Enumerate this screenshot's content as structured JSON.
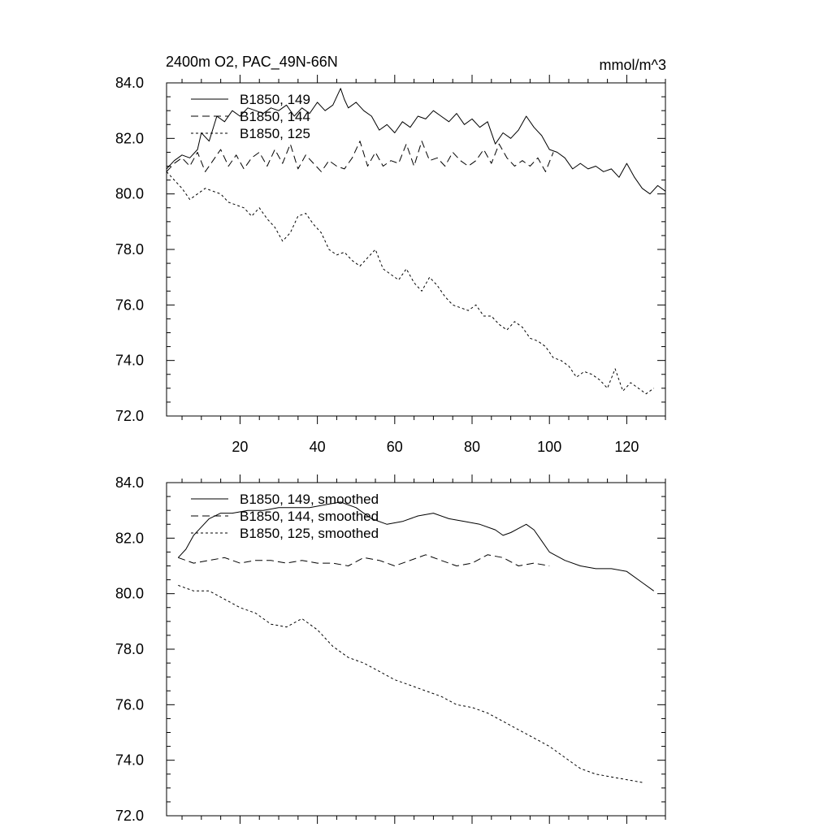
{
  "chart_data": [
    {
      "type": "line",
      "title": "2400m O2, PAC_49N-66N",
      "units": "mmol/m^3",
      "xlim": [
        1,
        130
      ],
      "ylim": [
        72.0,
        84.0
      ],
      "x_ticks": [
        20,
        40,
        60,
        80,
        100,
        120
      ],
      "x_tick_labels": [
        "20",
        "40",
        "60",
        "80",
        "100",
        "120"
      ],
      "y_ticks": [
        72.0,
        74.0,
        76.0,
        78.0,
        80.0,
        82.0,
        84.0
      ],
      "y_tick_labels": [
        "72.0",
        "74.0",
        "76.0",
        "78.0",
        "80.0",
        "82.0",
        "84.0"
      ],
      "legend_position": "top-left",
      "series": [
        {
          "name": "B1850, 149",
          "dash": "solid",
          "x": [
            1,
            3,
            5,
            7,
            9,
            10,
            12,
            14,
            16,
            18,
            20,
            22,
            24,
            26,
            28,
            30,
            32,
            34,
            36,
            38,
            40,
            42,
            44,
            46,
            47,
            48,
            50,
            52,
            54,
            56,
            58,
            60,
            62,
            64,
            66,
            68,
            70,
            72,
            74,
            76,
            78,
            80,
            82,
            84,
            86,
            88,
            90,
            92,
            94,
            96,
            98,
            100,
            102,
            104,
            106,
            108,
            110,
            112,
            114,
            116,
            118,
            120,
            122,
            124,
            126,
            128,
            130
          ],
          "values": [
            80.9,
            81.2,
            81.4,
            81.3,
            81.6,
            82.2,
            81.9,
            82.8,
            82.6,
            83.0,
            82.8,
            83.1,
            83.0,
            82.9,
            83.1,
            83.0,
            83.2,
            82.8,
            83.1,
            82.9,
            83.3,
            83.0,
            83.2,
            83.8,
            83.4,
            83.1,
            83.3,
            83.0,
            82.8,
            82.3,
            82.5,
            82.2,
            82.6,
            82.4,
            82.8,
            82.7,
            83.0,
            82.8,
            82.6,
            82.9,
            82.5,
            82.7,
            82.4,
            82.6,
            81.8,
            82.2,
            82.0,
            82.3,
            82.8,
            82.4,
            82.1,
            81.6,
            81.5,
            81.3,
            80.9,
            81.1,
            80.9,
            81.0,
            80.8,
            80.9,
            80.6,
            81.1,
            80.6,
            80.2,
            80.0,
            80.3,
            80.1
          ]
        },
        {
          "name": "B1850, 144",
          "dash": "long-dash",
          "x": [
            1,
            3,
            5,
            7,
            9,
            11,
            13,
            15,
            17,
            19,
            21,
            23,
            25,
            27,
            29,
            31,
            33,
            35,
            37,
            39,
            41,
            43,
            45,
            47,
            49,
            51,
            53,
            55,
            57,
            59,
            61,
            63,
            65,
            67,
            69,
            71,
            73,
            75,
            77,
            79,
            81,
            83,
            85,
            87,
            89,
            91,
            93,
            95,
            97,
            99,
            101
          ],
          "values": [
            80.8,
            81.1,
            81.3,
            81.0,
            81.5,
            80.8,
            81.2,
            81.6,
            81.0,
            81.4,
            80.9,
            81.3,
            81.5,
            81.0,
            81.6,
            81.1,
            81.8,
            80.9,
            81.4,
            81.1,
            80.8,
            81.2,
            81.0,
            80.9,
            81.3,
            81.9,
            81.0,
            81.5,
            81.0,
            81.2,
            81.1,
            81.8,
            81.0,
            81.9,
            81.2,
            81.3,
            81.0,
            81.5,
            81.2,
            81.0,
            81.2,
            81.6,
            81.1,
            81.8,
            81.3,
            81.0,
            81.2,
            81.0,
            81.3,
            80.8,
            81.5
          ]
        },
        {
          "name": "B1850, 125",
          "dash": "short-dash",
          "x": [
            1,
            3,
            5,
            7,
            9,
            11,
            13,
            15,
            17,
            19,
            21,
            23,
            25,
            27,
            29,
            31,
            33,
            35,
            37,
            39,
            41,
            43,
            45,
            47,
            49,
            51,
            53,
            55,
            57,
            59,
            61,
            63,
            65,
            67,
            69,
            71,
            73,
            75,
            77,
            79,
            81,
            83,
            85,
            87,
            89,
            91,
            93,
            95,
            97,
            99,
            101,
            103,
            105,
            107,
            109,
            111,
            113,
            115,
            117,
            119,
            121,
            123,
            125,
            127
          ],
          "values": [
            80.8,
            80.5,
            80.2,
            79.8,
            80.0,
            80.2,
            80.1,
            80.0,
            79.7,
            79.6,
            79.5,
            79.2,
            79.5,
            79.1,
            78.8,
            78.3,
            78.6,
            79.2,
            79.3,
            78.9,
            78.6,
            78.0,
            77.8,
            77.9,
            77.6,
            77.4,
            77.7,
            78.0,
            77.3,
            77.1,
            76.9,
            77.3,
            76.8,
            76.5,
            77.0,
            76.7,
            76.3,
            76.0,
            75.9,
            75.8,
            76.0,
            75.6,
            75.6,
            75.3,
            75.1,
            75.4,
            75.2,
            74.8,
            74.7,
            74.5,
            74.1,
            74.0,
            73.8,
            73.4,
            73.6,
            73.5,
            73.3,
            73.0,
            73.7,
            72.9,
            73.2,
            73.0,
            72.8,
            73.0
          ]
        }
      ]
    },
    {
      "type": "line",
      "title": "",
      "units": "",
      "xlim": [
        1,
        130
      ],
      "ylim": [
        72.0,
        84.0
      ],
      "y_ticks": [
        72.0,
        74.0,
        76.0,
        78.0,
        80.0,
        82.0,
        84.0
      ],
      "y_tick_labels": [
        "72.0",
        "74.0",
        "76.0",
        "78.0",
        "80.0",
        "82.0",
        "84.0"
      ],
      "legend_position": "top-left",
      "series": [
        {
          "name": "B1850, 149, smoothed",
          "dash": "solid",
          "x": [
            4,
            6,
            8,
            10,
            12,
            15,
            18,
            22,
            26,
            30,
            34,
            38,
            42,
            46,
            50,
            54,
            58,
            62,
            66,
            70,
            74,
            78,
            82,
            86,
            88,
            90,
            94,
            96,
            98,
            100,
            104,
            108,
            112,
            116,
            120,
            124,
            127
          ],
          "values": [
            81.3,
            81.6,
            82.1,
            82.4,
            82.7,
            82.9,
            82.9,
            83.0,
            83.0,
            83.1,
            83.1,
            83.1,
            83.2,
            83.3,
            83.1,
            82.7,
            82.5,
            82.6,
            82.8,
            82.9,
            82.7,
            82.6,
            82.5,
            82.3,
            82.1,
            82.2,
            82.5,
            82.3,
            81.9,
            81.5,
            81.2,
            81.0,
            80.9,
            80.9,
            80.8,
            80.4,
            80.1
          ]
        },
        {
          "name": "B1850, 144, smoothed",
          "dash": "long-dash",
          "x": [
            4,
            8,
            12,
            16,
            20,
            24,
            28,
            32,
            36,
            40,
            44,
            48,
            52,
            56,
            60,
            64,
            68,
            72,
            76,
            80,
            84,
            88,
            92,
            96,
            100
          ],
          "values": [
            81.3,
            81.1,
            81.2,
            81.3,
            81.1,
            81.2,
            81.2,
            81.1,
            81.2,
            81.1,
            81.1,
            81.0,
            81.3,
            81.2,
            81.0,
            81.2,
            81.4,
            81.2,
            81.0,
            81.1,
            81.4,
            81.3,
            81.0,
            81.1,
            81.0
          ]
        },
        {
          "name": "B1850, 125, smoothed",
          "dash": "short-dash",
          "x": [
            4,
            8,
            12,
            16,
            20,
            24,
            28,
            32,
            36,
            40,
            44,
            48,
            52,
            56,
            60,
            64,
            68,
            72,
            76,
            80,
            84,
            88,
            92,
            96,
            100,
            104,
            108,
            112,
            116,
            120,
            124
          ],
          "values": [
            80.3,
            80.1,
            80.1,
            79.8,
            79.5,
            79.3,
            78.9,
            78.8,
            79.1,
            78.7,
            78.1,
            77.7,
            77.5,
            77.2,
            76.9,
            76.7,
            76.5,
            76.3,
            76.0,
            75.9,
            75.7,
            75.4,
            75.1,
            74.8,
            74.5,
            74.1,
            73.7,
            73.5,
            73.4,
            73.3,
            73.2
          ]
        }
      ]
    }
  ]
}
